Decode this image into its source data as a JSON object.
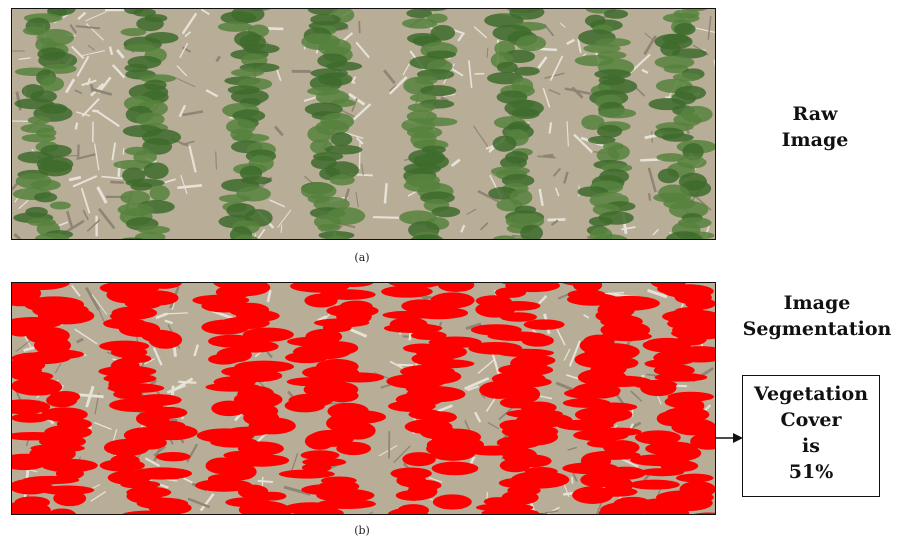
{
  "panel_a": {
    "caption": "(a)",
    "side_label_lines": [
      "Raw",
      "Image"
    ]
  },
  "panel_b": {
    "caption": "(b)",
    "side_label_lines": [
      "Image",
      "Segmentation"
    ]
  },
  "result": {
    "lines": [
      "Vegetation",
      "Cover",
      "is",
      "51%"
    ],
    "vegetation_cover_percent": 51
  },
  "colors": {
    "vegetation": "#3d6b2c",
    "soil": "#b8ad97",
    "segmentation": "#ff0000",
    "residue": "#e6e2d8"
  }
}
